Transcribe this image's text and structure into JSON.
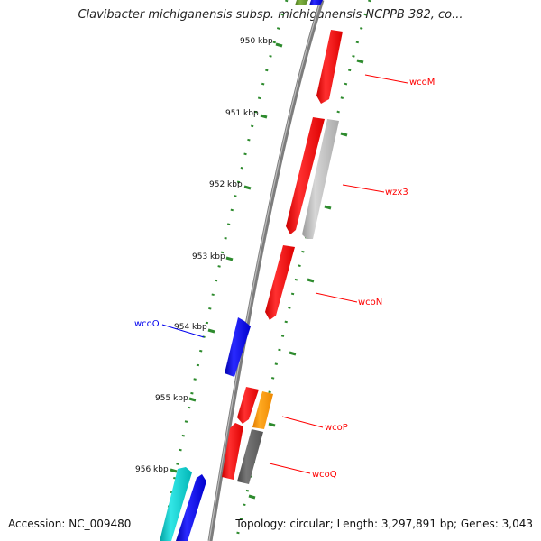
{
  "title": "Clavibacter michiganensis subsp. michiganensis NCPPB 382, co...",
  "footer": {
    "accession": "Accession: NC_009480",
    "summary": "Topology: circular; Length: 3,297,891 bp; Genes: 3,043"
  },
  "colors": {
    "backbone": "#888888",
    "tick": "#2e8b2e",
    "gene_red": "#ff0000",
    "gene_blue": "#0000ee",
    "gene_gray": "#bbbbbb",
    "gene_darkgray": "#666666",
    "gene_orange": "#ff9900",
    "gene_cyan": "#00cccc",
    "gene_olive": "#669933"
  },
  "ticks": [
    "950 kbp",
    "951 kbp",
    "952 kbp",
    "953 kbp",
    "954 kbp",
    "955 kbp",
    "956 kbp"
  ],
  "genes": [
    {
      "name": "wcoM",
      "color": "red",
      "label_color": "red"
    },
    {
      "name": "wzx3",
      "color": "gray",
      "label_color": "red"
    },
    {
      "name": "wcoN",
      "color": "red",
      "label_color": "red"
    },
    {
      "name": "wcoO",
      "color": "blue",
      "label_color": "blue"
    },
    {
      "name": "wcoP",
      "color": "orange",
      "label_color": "red"
    },
    {
      "name": "wcoQ",
      "color": "darkgray",
      "label_color": "red"
    }
  ]
}
